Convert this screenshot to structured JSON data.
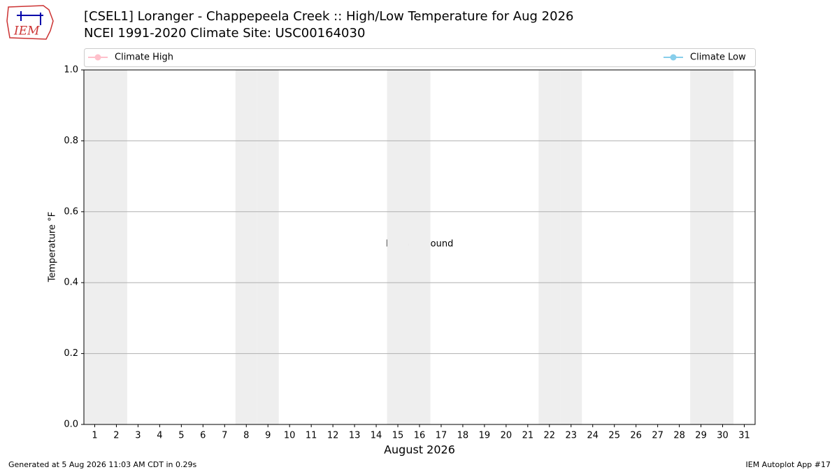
{
  "chart_data": {
    "type": "line",
    "title": "[CSEL1] Loranger - Chappepeela Creek :: High/Low Temperature for Aug 2026",
    "subtitle": "NCEI 1991-2020 Climate Site: USC00164030",
    "logo_text": "IEM",
    "xlabel": "August 2026",
    "ylabel": "Temperature °F",
    "annotation": "No Data Found",
    "footer_left": "Generated at 5 Aug 2026 11:03 AM CDT in 0.29s",
    "footer_right": "IEM Autoplot App #17",
    "categories": [
      "1",
      "2",
      "3",
      "4",
      "5",
      "6",
      "7",
      "8",
      "9",
      "10",
      "11",
      "12",
      "13",
      "14",
      "15",
      "16",
      "17",
      "18",
      "19",
      "20",
      "21",
      "22",
      "23",
      "24",
      "25",
      "26",
      "27",
      "28",
      "29",
      "30",
      "31"
    ],
    "shaded_categories": [
      "1",
      "2",
      "8",
      "9",
      "15",
      "16",
      "22",
      "23",
      "29",
      "30"
    ],
    "shade_color": "#eeeeee",
    "series": [
      {
        "name": "Climate High",
        "color": "pink",
        "values": [
          null,
          null,
          null,
          null,
          null,
          null,
          null,
          null,
          null,
          null,
          null,
          null,
          null,
          null,
          null,
          null,
          null,
          null,
          null,
          null,
          null,
          null,
          null,
          null,
          null,
          null,
          null,
          null,
          null,
          null,
          null
        ]
      },
      {
        "name": "Climate Low",
        "color": "skyblue",
        "values": [
          null,
          null,
          null,
          null,
          null,
          null,
          null,
          null,
          null,
          null,
          null,
          null,
          null,
          null,
          null,
          null,
          null,
          null,
          null,
          null,
          null,
          null,
          null,
          null,
          null,
          null,
          null,
          null,
          null,
          null,
          null
        ]
      }
    ],
    "ylim": [
      0,
      1
    ],
    "yticks": [
      {
        "value": 0,
        "label": "0.0"
      },
      0.2,
      0.4,
      0.6,
      0.8,
      {
        "value": 1,
        "label": "1.0"
      }
    ],
    "grid": true
  }
}
